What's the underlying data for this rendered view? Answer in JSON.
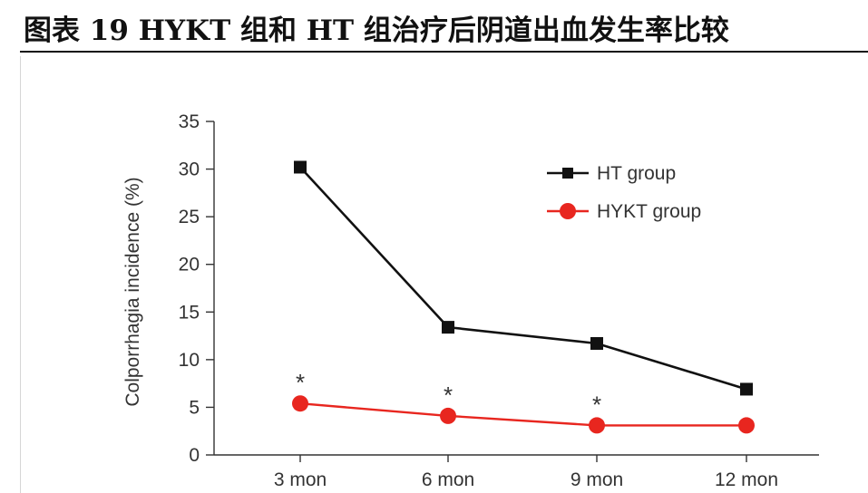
{
  "page_title": "图表 19 HYKT 组和 HT 组治疗后阴道出血发生率比较",
  "chart_data": {
    "type": "line",
    "categories": [
      "3 mon",
      "6 mon",
      "9 mon",
      "12 mon"
    ],
    "series": [
      {
        "name": "HT group",
        "values": [
          30.2,
          13.4,
          11.7,
          6.9
        ],
        "color": "#111111",
        "marker": "square"
      },
      {
        "name": "HYKT group",
        "values": [
          5.4,
          4.1,
          3.1,
          3.1
        ],
        "color": "#e8261f",
        "marker": "circle"
      }
    ],
    "significance_marks": [
      "*",
      "*",
      "*",
      ""
    ],
    "ylabel": "Colporrhagia incidence (%)",
    "ylim": [
      0,
      35
    ],
    "yticks": [
      0,
      5,
      10,
      15,
      20,
      25,
      30,
      35
    ],
    "legend_position": "top-right",
    "grid": false
  }
}
